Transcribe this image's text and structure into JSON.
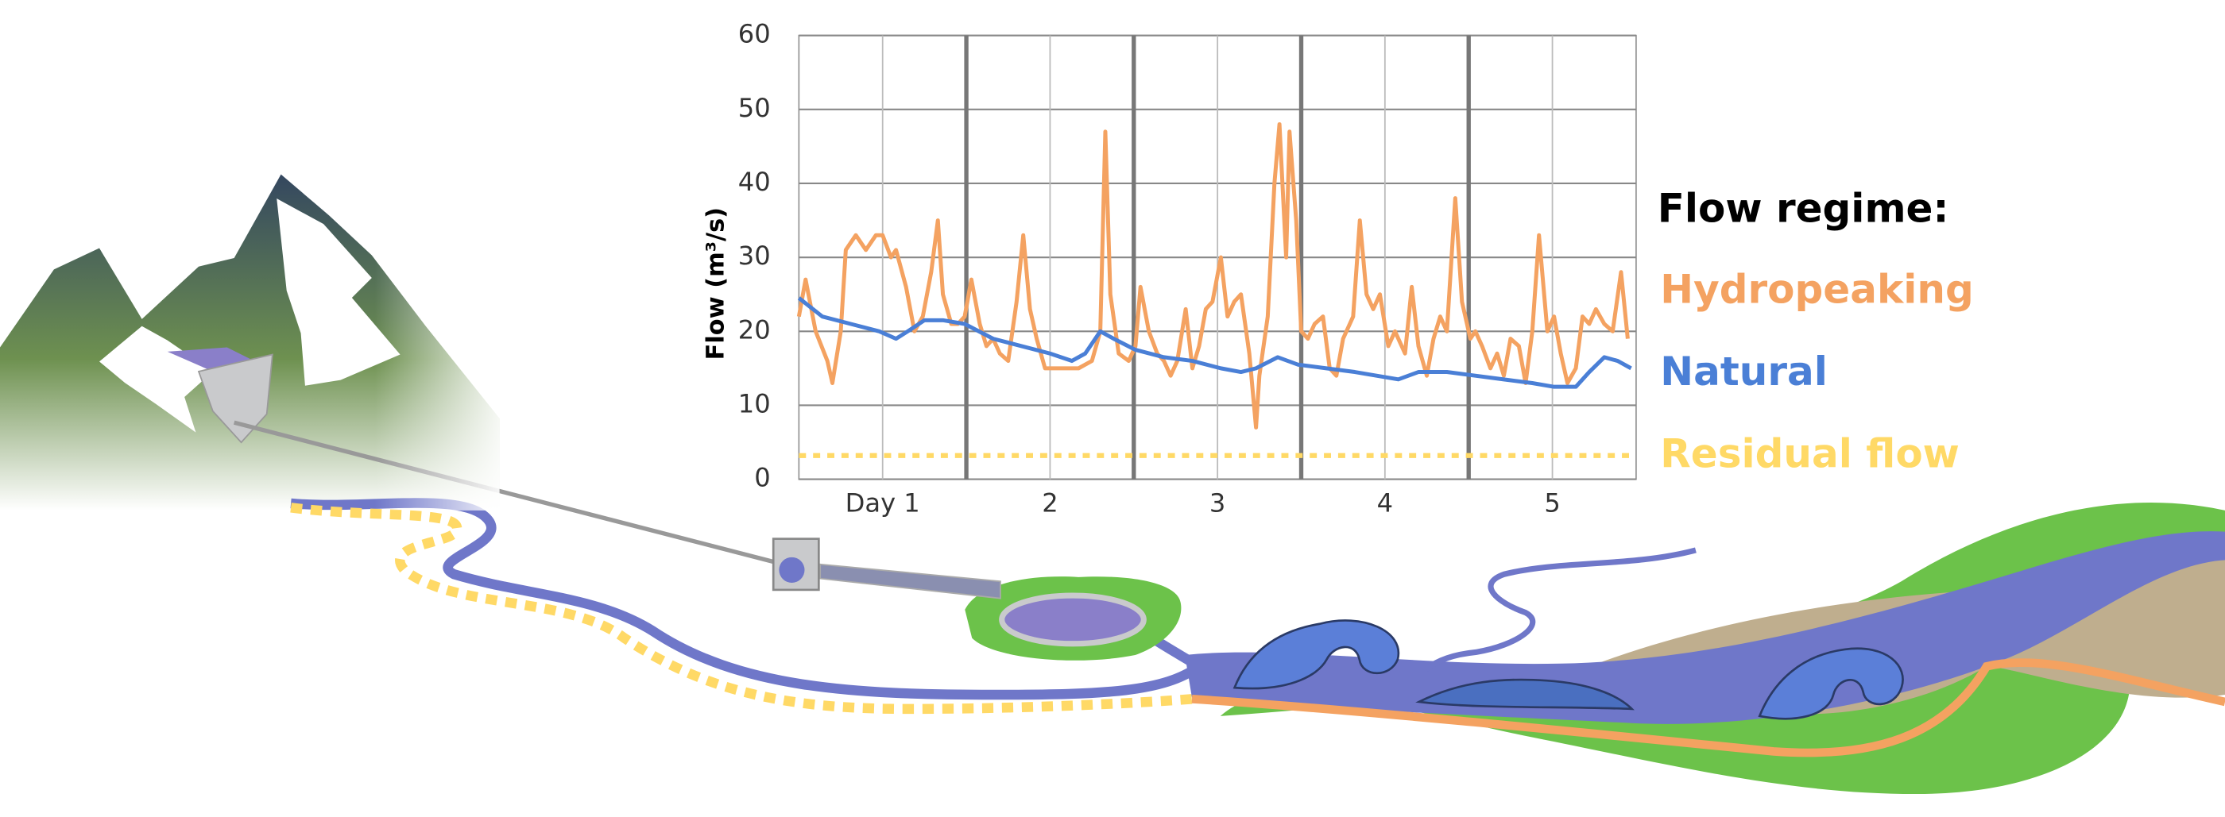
{
  "chart_data": {
    "type": "line",
    "ylabel": "Flow (m³/s)",
    "legend_title": "Flow regime:",
    "xlim": [
      0,
      5
    ],
    "ylim": [
      0,
      60
    ],
    "yticks": [
      0,
      10,
      20,
      30,
      40,
      50,
      60
    ],
    "xticks": [
      {
        "value": 0.5,
        "label": "Day 1"
      },
      {
        "value": 1.5,
        "label": "2"
      },
      {
        "value": 2.5,
        "label": "3"
      },
      {
        "value": 3.5,
        "label": "4"
      },
      {
        "value": 4.5,
        "label": "5"
      }
    ],
    "day_boundaries": [
      1,
      2,
      3,
      4
    ],
    "grid": true,
    "series": [
      {
        "name": "Hydropeaking",
        "color": "#f4a261",
        "dash": "solid",
        "x": [
          0,
          0.04,
          0.1,
          0.17,
          0.2,
          0.25,
          0.28,
          0.34,
          0.4,
          0.46,
          0.5,
          0.55,
          0.58,
          0.64,
          0.69,
          0.74,
          0.79,
          0.83,
          0.86,
          0.91,
          0.95,
          0.99,
          1.03,
          1.08,
          1.12,
          1.16,
          1.2,
          1.25,
          1.3,
          1.34,
          1.38,
          1.42,
          1.47,
          1.51,
          1.58,
          1.67,
          1.75,
          1.8,
          1.83,
          1.86,
          1.91,
          1.97,
          2.01,
          2.04,
          2.09,
          2.14,
          2.18,
          2.22,
          2.26,
          2.31,
          2.35,
          2.39,
          2.43,
          2.47,
          2.52,
          2.56,
          2.6,
          2.64,
          2.69,
          2.73,
          2.75,
          2.8,
          2.84,
          2.87,
          2.91,
          2.93,
          2.97,
          3.0,
          3.04,
          3.08,
          3.13,
          3.17,
          3.21,
          3.25,
          3.31,
          3.35,
          3.39,
          3.43,
          3.47,
          3.52,
          3.56,
          3.62,
          3.66,
          3.7,
          3.75,
          3.79,
          3.83,
          3.87,
          3.92,
          3.96,
          4.01,
          4.04,
          4.08,
          4.13,
          4.17,
          4.21,
          4.25,
          4.3,
          4.34,
          4.38,
          4.42,
          4.47,
          4.51,
          4.55,
          4.59,
          4.64,
          4.68,
          4.72,
          4.76,
          4.81,
          4.86,
          4.91,
          4.95
        ],
        "values": [
          22,
          27,
          20,
          16,
          13,
          20,
          31,
          33,
          31,
          33,
          33,
          30,
          31,
          26,
          20,
          22,
          28,
          35,
          25,
          21,
          21,
          22,
          27,
          21,
          18,
          19,
          17,
          16,
          24,
          33,
          23,
          19,
          15,
          15,
          15,
          15,
          16,
          20,
          47,
          25,
          17,
          16,
          18,
          26,
          20,
          17,
          16,
          14,
          16,
          23,
          15,
          18,
          23,
          24,
          30,
          22,
          24,
          25,
          17,
          7,
          14,
          22,
          40,
          48,
          30,
          47,
          35,
          20,
          19,
          21,
          22,
          15,
          14,
          19,
          22,
          35,
          25,
          23,
          25,
          18,
          20,
          17,
          26,
          18,
          14,
          19,
          22,
          20,
          38,
          24,
          19,
          20,
          18,
          15,
          17,
          14,
          19,
          18,
          13,
          20,
          33,
          20,
          22,
          17,
          13,
          15,
          22,
          21,
          23,
          21,
          20,
          28,
          19
        ]
      },
      {
        "name": "Natural",
        "color": "#4a7fd6",
        "dash": "solid",
        "x": [
          0,
          0.14,
          0.31,
          0.48,
          0.58,
          0.65,
          0.75,
          0.86,
          0.99,
          1.16,
          1.33,
          1.5,
          1.63,
          1.71,
          1.8,
          1.88,
          2.01,
          2.18,
          2.35,
          2.52,
          2.64,
          2.73,
          2.86,
          2.98,
          3.15,
          3.32,
          3.45,
          3.58,
          3.7,
          3.87,
          4.04,
          4.21,
          4.38,
          4.51,
          4.64,
          4.72,
          4.81,
          4.89,
          4.97
        ],
        "values": [
          24.5,
          22,
          21,
          20,
          19,
          20,
          21.5,
          21.5,
          21,
          19,
          18,
          17,
          16,
          17,
          20,
          19,
          17.5,
          16.5,
          16,
          15,
          14.5,
          15,
          16.5,
          15.5,
          15,
          14.5,
          14,
          13.5,
          14.5,
          14.5,
          14,
          13.5,
          13,
          12.5,
          12.5,
          14.5,
          16.5,
          16,
          15
        ]
      },
      {
        "name": "Residual flow",
        "color": "#ffd966",
        "dash": "dotted",
        "x": [
          0,
          5
        ],
        "values": [
          3.2,
          3.2
        ]
      }
    ]
  }
}
